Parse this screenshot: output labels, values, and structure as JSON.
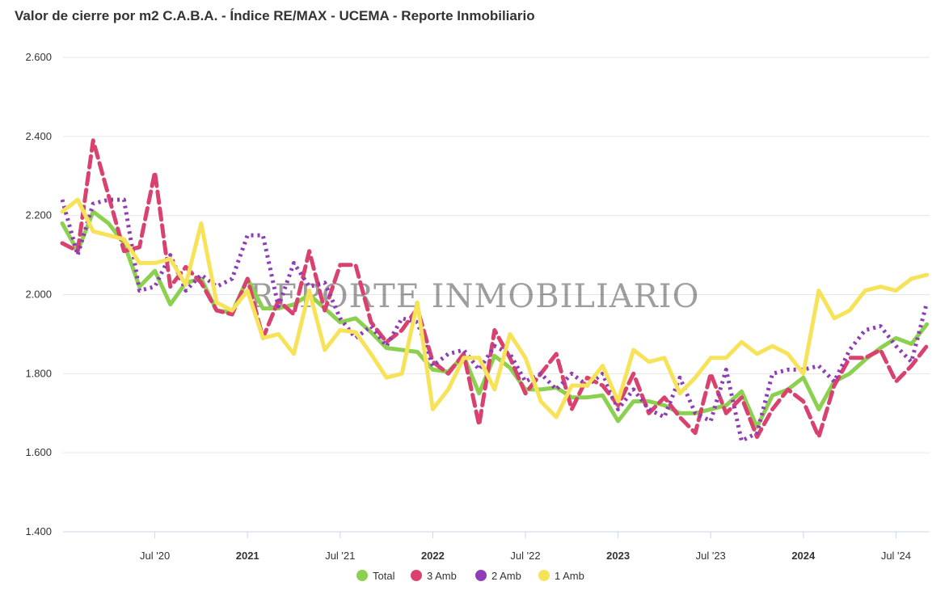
{
  "chart_data": {
    "type": "line",
    "title": "Valor de cierre por m2 C.A.B.A. - Índice RE/MAX - UCEMA - Reporte Inmobiliario",
    "watermark": "REPORTE INMOBILIARIO",
    "y_ticks": [
      "1.400",
      "1.600",
      "1.800",
      "2.000",
      "2.200",
      "2.400",
      "2.600"
    ],
    "ylim": [
      1400,
      2600
    ],
    "x_ticks": [
      {
        "label": "Jul '20",
        "index": 6,
        "bold": false
      },
      {
        "label": "2021",
        "index": 12,
        "bold": true
      },
      {
        "label": "Jul '21",
        "index": 18,
        "bold": false
      },
      {
        "label": "2022",
        "index": 24,
        "bold": true
      },
      {
        "label": "Jul '22",
        "index": 30,
        "bold": false
      },
      {
        "label": "2023",
        "index": 36,
        "bold": true
      },
      {
        "label": "Jul '23",
        "index": 42,
        "bold": false
      },
      {
        "label": "2024",
        "index": 48,
        "bold": true
      },
      {
        "label": "Jul '24",
        "index": 54,
        "bold": false
      }
    ],
    "x_start": "2020-01",
    "grid": true,
    "legend_position": "bottom",
    "series": [
      {
        "name": "Total",
        "color": "#8bd04f",
        "dash": "solid",
        "values": [
          2180,
          2110,
          2210,
          2180,
          2130,
          2020,
          2060,
          1975,
          2030,
          2040,
          1960,
          1955,
          2040,
          1965,
          1965,
          1975,
          2000,
          1965,
          1930,
          1940,
          1905,
          1865,
          1860,
          1855,
          1810,
          1805,
          1845,
          1750,
          1845,
          1815,
          1760,
          1760,
          1765,
          1740,
          1740,
          1745,
          1680,
          1730,
          1730,
          1720,
          1700,
          1700,
          1710,
          1720,
          1755,
          1665,
          1745,
          1760,
          1790,
          1710,
          1780,
          1800,
          1835,
          1865,
          1890,
          1875,
          1925
        ]
      },
      {
        "name": "3 Amb",
        "color": "#d9426f",
        "dash": "dashed",
        "values": [
          2130,
          2110,
          2390,
          2250,
          2110,
          2120,
          2310,
          2020,
          2070,
          2030,
          1960,
          1950,
          2040,
          1890,
          1985,
          1950,
          2110,
          1960,
          2075,
          2075,
          1930,
          1880,
          1910,
          1965,
          1830,
          1800,
          1850,
          1670,
          1910,
          1840,
          1750,
          1800,
          1850,
          1710,
          1790,
          1770,
          1720,
          1800,
          1700,
          1740,
          1690,
          1650,
          1800,
          1700,
          1740,
          1640,
          1710,
          1760,
          1730,
          1640,
          1770,
          1840,
          1840,
          1860,
          1780,
          1820,
          1870
        ]
      },
      {
        "name": "2 Amb",
        "color": "#8e3db5",
        "dash": "dotted",
        "values": [
          2240,
          2100,
          2230,
          2240,
          2240,
          2010,
          2020,
          2100,
          2010,
          2050,
          2020,
          2040,
          2150,
          2150,
          1970,
          2080,
          2020,
          2030,
          1940,
          1890,
          1920,
          1870,
          1940,
          1930,
          1820,
          1850,
          1860,
          1810,
          1870,
          1850,
          1780,
          1800,
          1760,
          1800,
          1770,
          1800,
          1710,
          1760,
          1710,
          1690,
          1790,
          1700,
          1680,
          1810,
          1630,
          1650,
          1800,
          1810,
          1810,
          1820,
          1780,
          1860,
          1910,
          1920,
          1870,
          1830,
          1980
        ]
      },
      {
        "name": "1 Amb",
        "color": "#f7e35a",
        "dash": "solid",
        "values": [
          2210,
          2240,
          2160,
          2150,
          2140,
          2080,
          2080,
          2090,
          2025,
          2180,
          1980,
          1960,
          2010,
          1890,
          1900,
          1850,
          2010,
          1860,
          1910,
          1905,
          1850,
          1790,
          1800,
          1980,
          1710,
          1760,
          1840,
          1840,
          1760,
          1900,
          1840,
          1730,
          1690,
          1770,
          1770,
          1820,
          1730,
          1860,
          1830,
          1840,
          1750,
          1790,
          1840,
          1840,
          1880,
          1850,
          1870,
          1850,
          1800,
          2010,
          1940,
          1960,
          2010,
          2020,
          2010,
          2040,
          2050
        ]
      }
    ]
  }
}
